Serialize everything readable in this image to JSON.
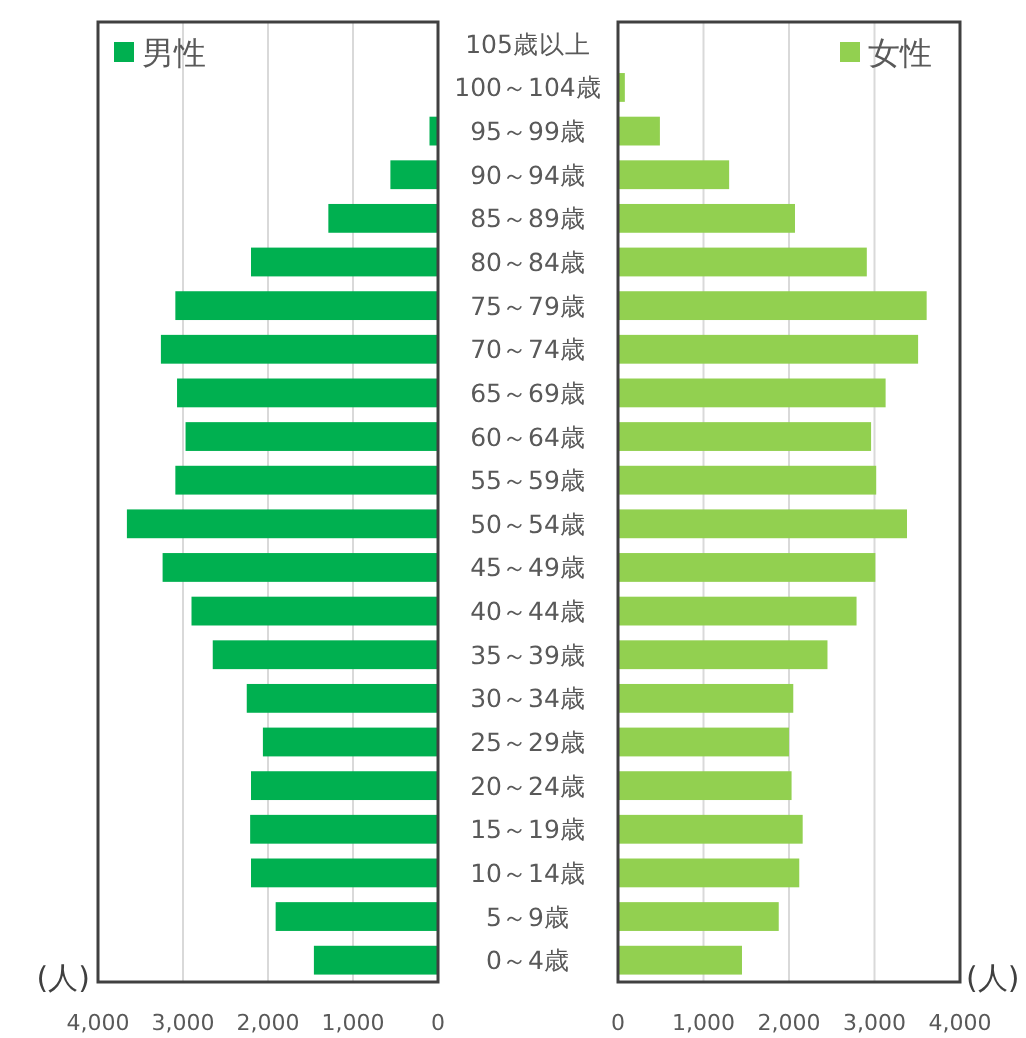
{
  "chart_data": [
    {
      "type": "bar",
      "orientation": "horizontal",
      "categories": [
        "105歳以上",
        "100～104歳",
        "95～99歳",
        "90～94歳",
        "85～89歳",
        "80～84歳",
        "75～79歳",
        "70～74歳",
        "65～69歳",
        "60～64歳",
        "55～59歳",
        "50～54歳",
        "45～49歳",
        "40～44歳",
        "35～39歳",
        "30～34歳",
        "25～29歳",
        "20～24歳",
        "15～19歳",
        "10～14歳",
        "5～9歳",
        "0～4歳"
      ],
      "series": [
        {
          "name": "男性",
          "color": "#00b050",
          "values": [
            0,
            10,
            100,
            560,
            1290,
            2200,
            3090,
            3260,
            3070,
            2970,
            3090,
            3660,
            3240,
            2900,
            2650,
            2250,
            2060,
            2200,
            2210,
            2200,
            1910,
            1460
          ]
        }
      ],
      "xlim": [
        4000,
        0
      ],
      "xticks": [
        {
          "value": 4000,
          "label": "4,000"
        },
        {
          "value": 3000,
          "label": "3,000"
        },
        {
          "value": 2000,
          "label": "2,000"
        },
        {
          "value": 1000,
          "label": "1,000"
        },
        0
      ],
      "xlabel": "(人)",
      "grid": "x",
      "legend": "top left"
    },
    {
      "type": "bar",
      "orientation": "horizontal",
      "categories": [
        null,
        null,
        null,
        null,
        null,
        null,
        null,
        null,
        null,
        null,
        null,
        null,
        null,
        null,
        null,
        null,
        null,
        null,
        null,
        null,
        null,
        null
      ],
      "tick_labels": "x",
      "series": [
        {
          "name": "女性",
          "color": "#92d050",
          "values": [
            0,
            80,
            490,
            1300,
            2070,
            2910,
            3610,
            3510,
            3130,
            2960,
            3020,
            3380,
            3010,
            2790,
            2450,
            2050,
            2000,
            2030,
            2160,
            2120,
            1880,
            1450
          ]
        }
      ],
      "xlim": [
        0,
        4000
      ],
      "xticks": [
        0,
        {
          "value": 1000,
          "label": "1,000"
        },
        {
          "value": 2000,
          "label": "2,000"
        },
        {
          "value": 3000,
          "label": "3,000"
        },
        {
          "value": 4000,
          "label": "4,000"
        }
      ],
      "xlabel": "(人)",
      "grid": "x",
      "legend": "top right"
    }
  ]
}
